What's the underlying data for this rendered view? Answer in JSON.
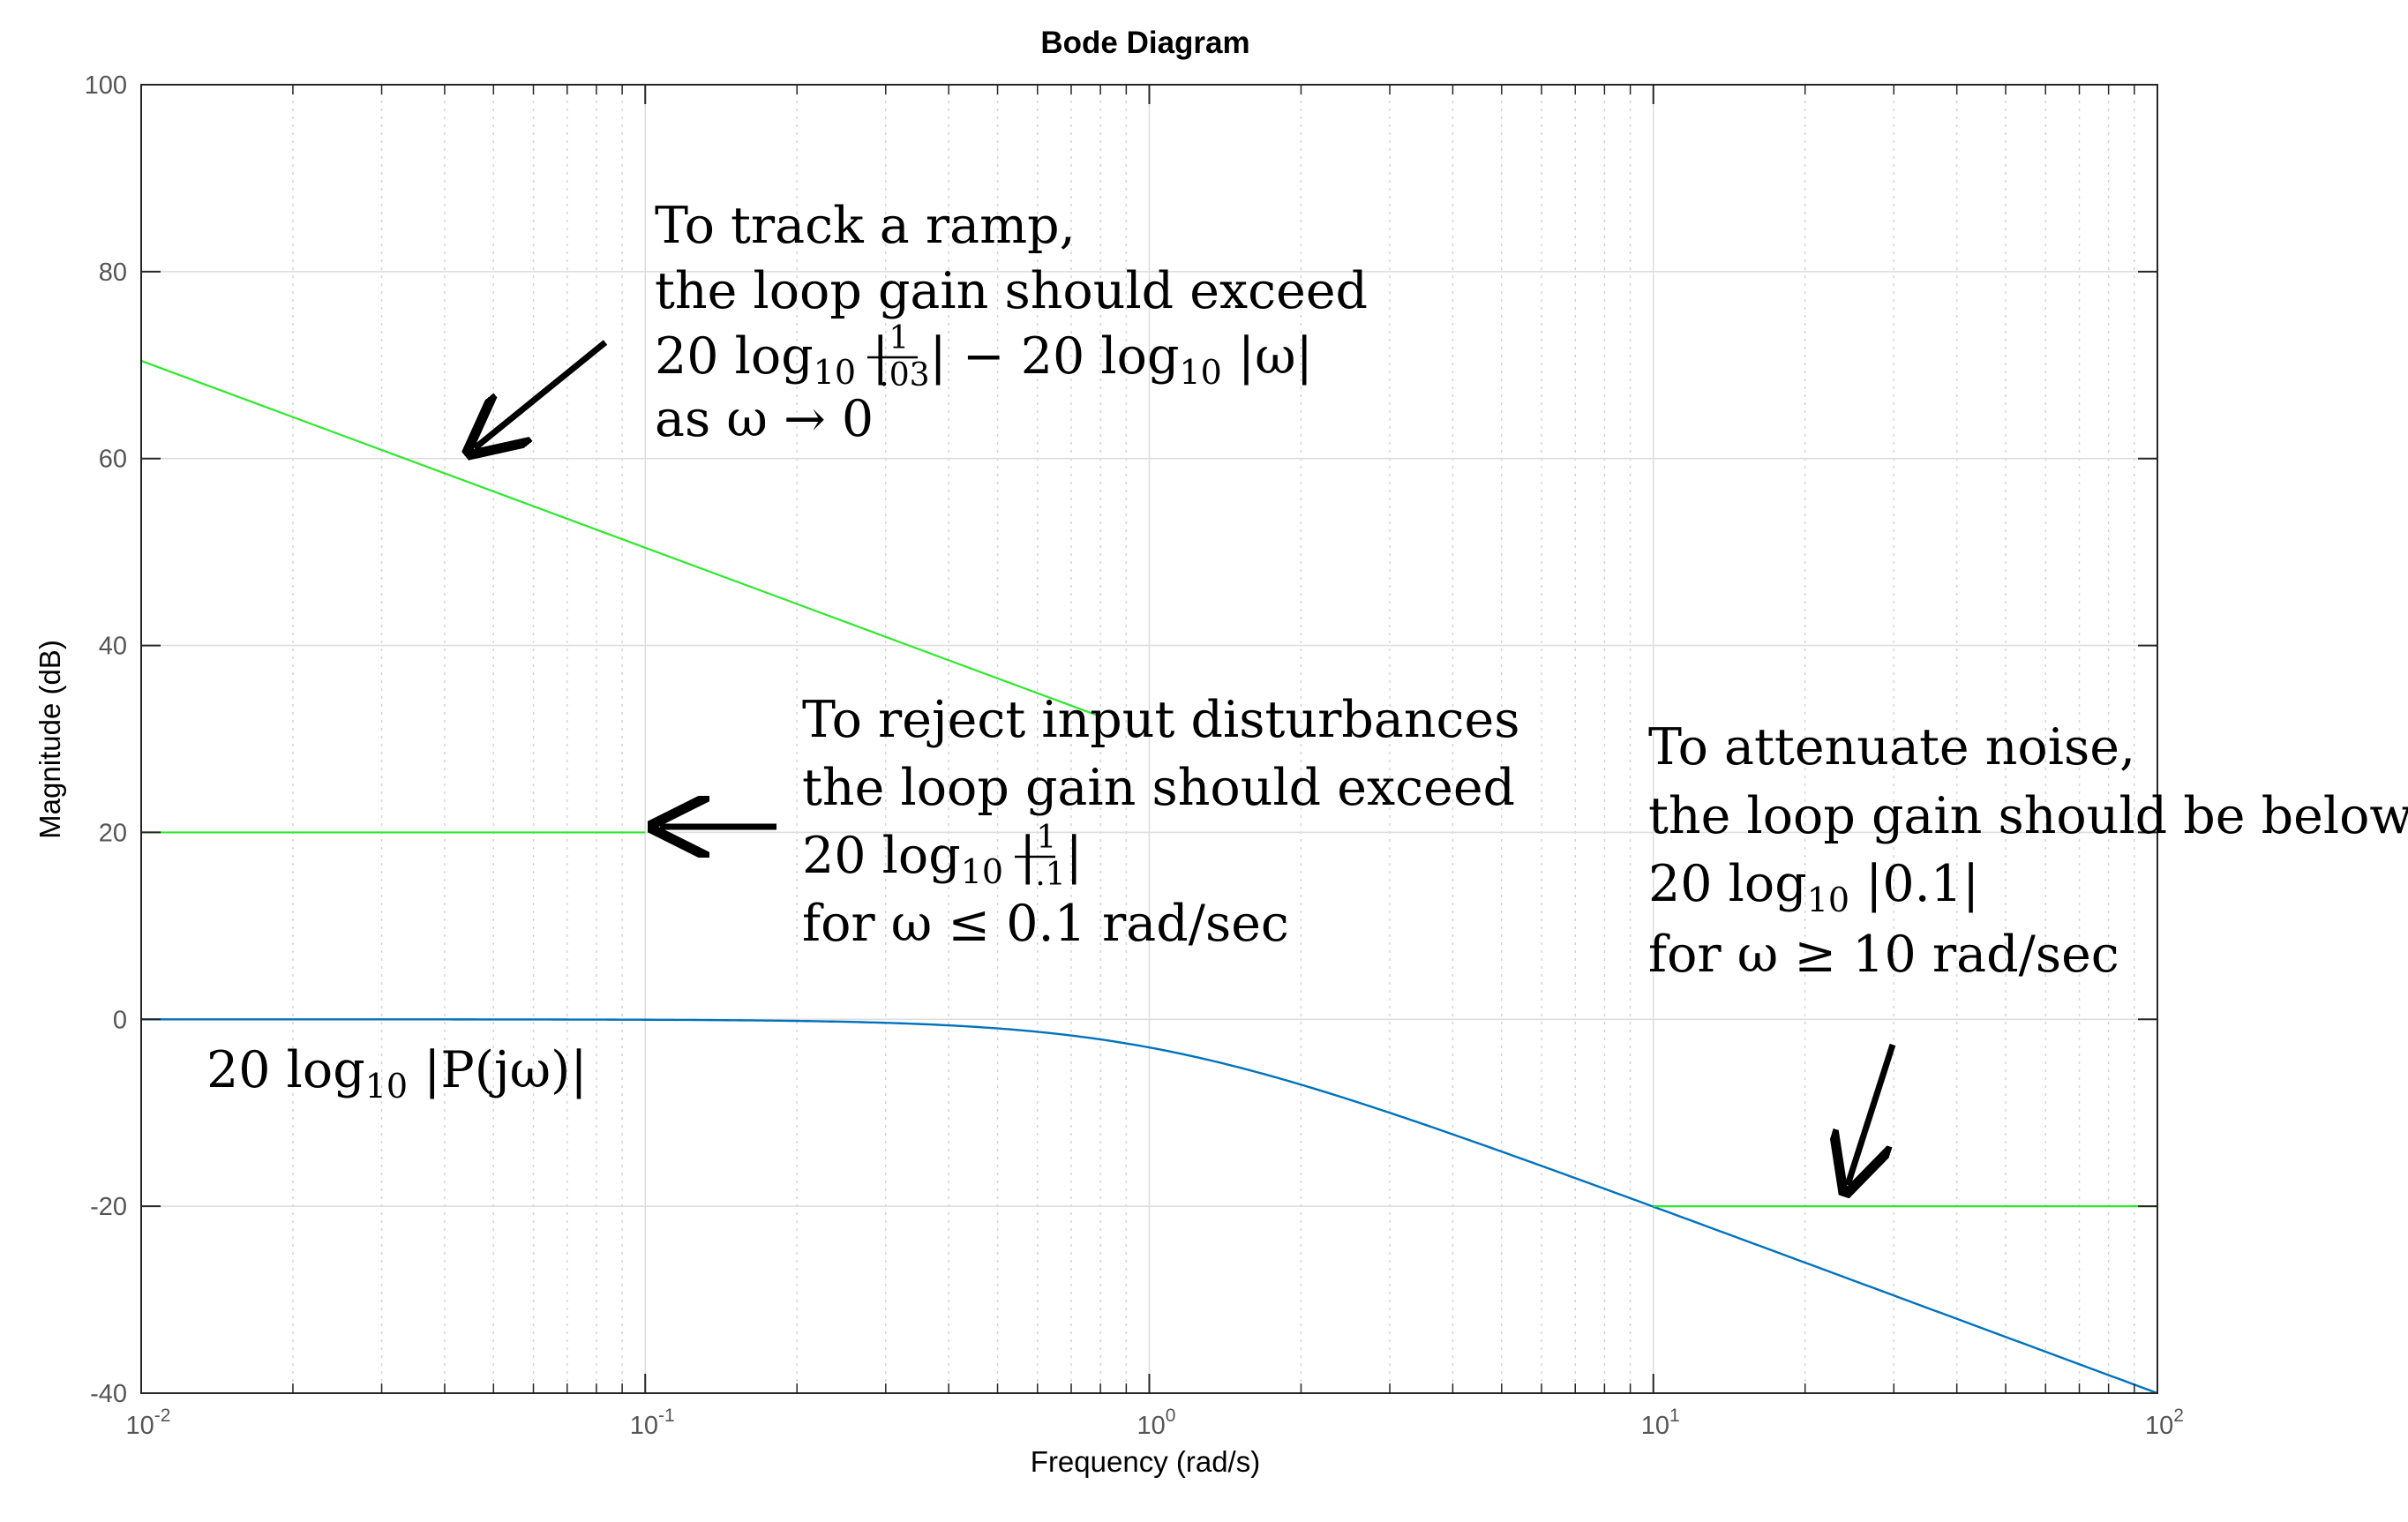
{
  "chart_data": {
    "type": "line",
    "title": "Bode Diagram",
    "xlabel": "Frequency  (rad/s)",
    "ylabel": "Magnitude (dB)",
    "xscale": "log",
    "xlim": [
      0.01,
      100
    ],
    "ylim": [
      -40,
      100
    ],
    "grid": true,
    "x_ticks": [
      {
        "base": "10",
        "exp": "-2",
        "value": 0.01
      },
      {
        "base": "10",
        "exp": "-1",
        "value": 0.1
      },
      {
        "base": "10",
        "exp": "0",
        "value": 1
      },
      {
        "base": "10",
        "exp": "1",
        "value": 10
      },
      {
        "base": "10",
        "exp": "2",
        "value": 100
      }
    ],
    "y_ticks": [
      {
        "label": "100",
        "value": 100
      },
      {
        "label": "80",
        "value": 80
      },
      {
        "label": "60",
        "value": 60
      },
      {
        "label": "40",
        "value": 40
      },
      {
        "label": "20",
        "value": 20
      },
      {
        "label": "0",
        "value": 0
      },
      {
        "label": "-20",
        "value": -20
      },
      {
        "label": "-40",
        "value": -40
      }
    ],
    "series": [
      {
        "color": "#0072BD",
        "x": [
          0.01,
          0.02,
          0.05,
          0.1,
          0.2,
          0.3,
          0.5,
          0.7,
          1,
          1.5,
          2,
          3,
          5,
          7,
          10,
          20,
          50,
          100
        ],
        "y": [
          0,
          0,
          -0.01,
          -0.04,
          -0.17,
          -0.37,
          -0.97,
          -1.7,
          -3.01,
          -5.12,
          -6.99,
          -10.0,
          -14.15,
          -17.0,
          -20.04,
          -26.03,
          -33.98,
          -40.0
        ]
      },
      {
        "color": "#2EE82E",
        "x": [
          0.01,
          0.8
        ],
        "y": [
          70.46,
          32.4
        ]
      },
      {
        "color": "#2EE82E",
        "x": [
          0.01,
          0.1
        ],
        "y": [
          20,
          20
        ]
      },
      {
        "color": "#2EE82E",
        "x": [
          10,
          100
        ],
        "y": [
          -20,
          -20
        ]
      }
    ],
    "annotations": {
      "ramp": {
        "line1": "To track a ramp,",
        "line2": "the loop gain should exceed",
        "l3_a": "20 log",
        "l3_sub": "10",
        "l3_b": " |",
        "l3_num": "1",
        "l3_den": ".03",
        "l3_c": "| − 20 log",
        "l3_sub2": "10",
        "l3_d": " |ω|",
        "line4": "as ω → 0"
      },
      "disturbance": {
        "line1": "To reject input disturbances",
        "line2": "the loop gain should exceed",
        "l3_a": "20 log",
        "l3_sub": "10",
        "l3_b": " |",
        "l3_num": "1",
        "l3_den": ".1",
        "l3_c": "|",
        "line4": "for ω ≤ 0.1 rad/sec"
      },
      "noise": {
        "line1": "To attenuate noise,",
        "line2": "the loop gain should be below",
        "l3_a": "20 log",
        "l3_sub": "10",
        "l3_b": " |0.1|",
        "line4": "for ω ≥ 10 rad/sec"
      },
      "plant": {
        "a": "20 log",
        "sub": "10",
        "b": " |P(jω)|"
      }
    }
  }
}
